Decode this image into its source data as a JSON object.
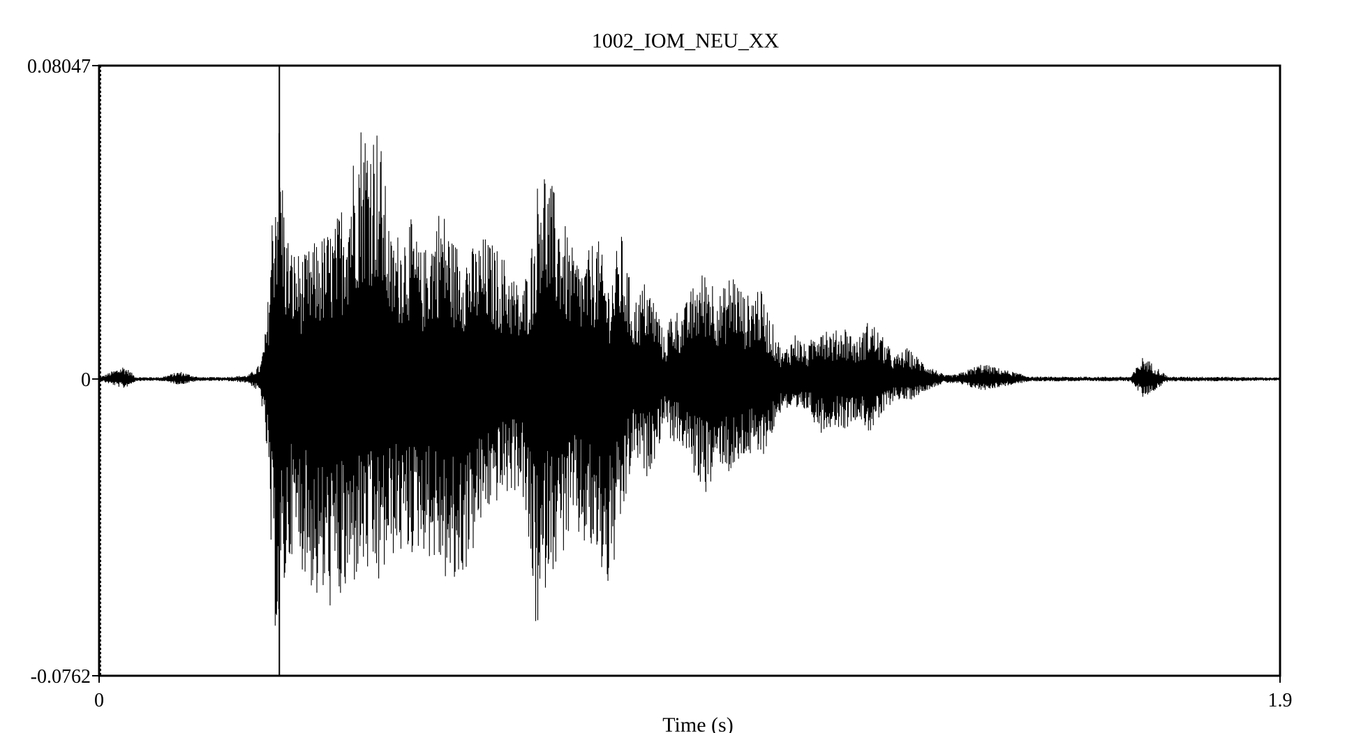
{
  "chart_data": {
    "type": "line",
    "title": "1002_IOM_NEU_XX",
    "xlabel": "Time (s)",
    "ylabel": "",
    "xlim": [
      0,
      1.9
    ],
    "ylim": [
      -0.0762,
      0.08047
    ],
    "x_tick_labels": [
      "0",
      "1.9"
    ],
    "y_tick_labels": [
      "0.08047",
      "0",
      "-0.0762"
    ],
    "zero_line": true,
    "cursor_x": 0.29,
    "series": [
      {
        "envelope_time": [
          0.0,
          0.04,
          0.06,
          0.08,
          0.1,
          0.13,
          0.16,
          0.18,
          0.2,
          0.24,
          0.26,
          0.27,
          0.28,
          0.29,
          0.3,
          0.31,
          0.33,
          0.35,
          0.38,
          0.4,
          0.42,
          0.45,
          0.47,
          0.5,
          0.52,
          0.55,
          0.57,
          0.6,
          0.62,
          0.64,
          0.66,
          0.68,
          0.7,
          0.71,
          0.72,
          0.74,
          0.76,
          0.78,
          0.8,
          0.82,
          0.84,
          0.86,
          0.88,
          0.9,
          0.91,
          0.92,
          0.94,
          0.96,
          0.98,
          1.0,
          1.02,
          1.04,
          1.06,
          1.08,
          1.1,
          1.12,
          1.14,
          1.16,
          1.18,
          1.2,
          1.22,
          1.24,
          1.26,
          1.28,
          1.3,
          1.33,
          1.36,
          1.38,
          1.42,
          1.5,
          1.58,
          1.62,
          1.66,
          1.68,
          1.72,
          1.8,
          1.9
        ],
        "envelope_max": [
          0.0004,
          0.0035,
          0.0005,
          0.0005,
          0.0005,
          0.002,
          0.0005,
          0.0005,
          0.0005,
          0.001,
          0.004,
          0.015,
          0.05,
          0.068,
          0.04,
          0.034,
          0.032,
          0.036,
          0.04,
          0.052,
          0.068,
          0.066,
          0.036,
          0.042,
          0.032,
          0.046,
          0.036,
          0.034,
          0.037,
          0.034,
          0.03,
          0.022,
          0.039,
          0.062,
          0.054,
          0.045,
          0.034,
          0.03,
          0.038,
          0.025,
          0.038,
          0.02,
          0.026,
          0.018,
          0.01,
          0.018,
          0.018,
          0.026,
          0.029,
          0.022,
          0.029,
          0.021,
          0.025,
          0.016,
          0.007,
          0.012,
          0.008,
          0.016,
          0.012,
          0.014,
          0.01,
          0.016,
          0.011,
          0.006,
          0.008,
          0.004,
          0.001,
          0.0012,
          0.004,
          0.0006,
          0.0006,
          0.0006,
          0.0006,
          0.006,
          0.0006,
          0.0006,
          0.0004
        ],
        "envelope_min": [
          -0.0004,
          -0.0025,
          -0.0005,
          -0.0005,
          -0.0005,
          -0.0015,
          -0.0005,
          -0.0005,
          -0.0005,
          -0.001,
          -0.004,
          -0.02,
          -0.062,
          -0.069,
          -0.054,
          -0.045,
          -0.05,
          -0.058,
          -0.06,
          -0.058,
          -0.05,
          -0.055,
          -0.046,
          -0.046,
          -0.044,
          -0.05,
          -0.057,
          -0.046,
          -0.036,
          -0.032,
          -0.03,
          -0.028,
          -0.062,
          -0.072,
          -0.05,
          -0.048,
          -0.04,
          -0.044,
          -0.048,
          -0.056,
          -0.04,
          -0.02,
          -0.026,
          -0.018,
          -0.01,
          -0.016,
          -0.018,
          -0.026,
          -0.03,
          -0.022,
          -0.026,
          -0.02,
          -0.022,
          -0.016,
          -0.007,
          -0.01,
          -0.008,
          -0.014,
          -0.012,
          -0.013,
          -0.01,
          -0.014,
          -0.01,
          -0.005,
          -0.006,
          -0.003,
          -0.001,
          -0.0012,
          -0.003,
          -0.0006,
          -0.0006,
          -0.0006,
          -0.0006,
          -0.005,
          -0.0006,
          -0.0006,
          -0.0004
        ]
      }
    ],
    "grid": false,
    "legend": "none"
  }
}
